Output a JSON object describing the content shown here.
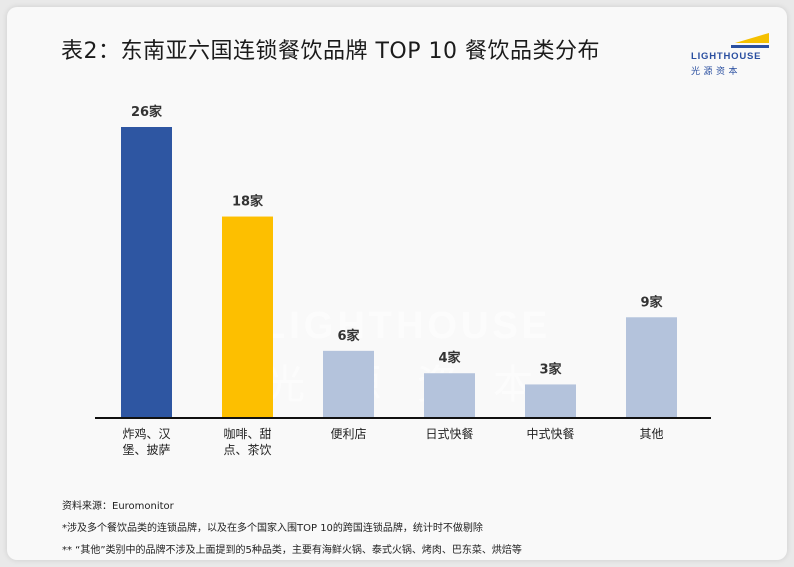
{
  "title": "表2：东南亚六国连锁餐饮品牌 TOP 10 餐饮品类分布",
  "logo": {
    "brand_en": "LIGHTHOUSE",
    "brand_cn": "光源资本",
    "colors": {
      "primary": "#2a4fa0",
      "accent": "#f5c000"
    }
  },
  "watermark": {
    "text_en": "LIGHTHOUSE",
    "text_cn": "光源资本"
  },
  "chart_data": {
    "type": "bar",
    "title": "表2：东南亚六国连锁餐饮品牌 TOP 10 餐饮品类分布",
    "categories": [
      [
        "炸鸡、汉",
        "堡、披萨"
      ],
      [
        "咖啡、甜",
        "点、茶饮"
      ],
      [
        "便利店"
      ],
      [
        "日式快餐"
      ],
      [
        "中式快餐"
      ],
      [
        "其他"
      ]
    ],
    "values": [
      26,
      18,
      6,
      4,
      3,
      9
    ],
    "data_labels": [
      "26家",
      "18家",
      "6家",
      "4家",
      "3家",
      "9家"
    ],
    "unit": "家",
    "colors": [
      "#2e56a2",
      "#fdbf00",
      "#b4c3dc",
      "#b4c3dc",
      "#b4c3dc",
      "#b4c3dc"
    ],
    "xlabel": "",
    "ylabel": "",
    "ylim": [
      0,
      26
    ],
    "grid": false,
    "legend": "none"
  },
  "footnotes": [
    "资料来源：Euromonitor",
    "*涉及多个餐饮品类的连锁品牌，以及在多个国家入围TOP 10的跨国连锁品牌，统计时不做剔除",
    "** “其他”类别中的品牌不涉及上面提到的5种品类，主要有海鲜火锅、泰式火锅、烤肉、巴东菜、烘焙等"
  ]
}
